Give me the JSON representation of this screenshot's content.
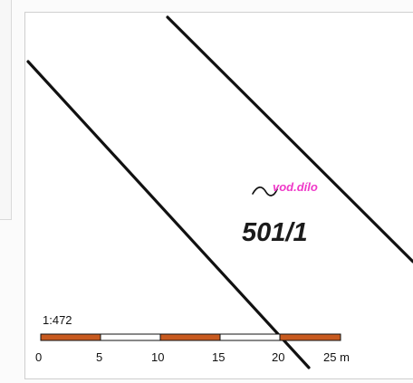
{
  "map": {
    "parcel_number": "501/1",
    "feature_label": "vod.dílo",
    "scale_label": "1:472",
    "scale_ticks": [
      "0",
      "5",
      "10",
      "15",
      "20",
      "25 m"
    ],
    "colors": {
      "parcel_boundary": "#111111",
      "feature_label": "#ef39c8",
      "scale_orange": "#c85a1f",
      "scale_white": "#ffffff",
      "parcel_number": "#1b1b1b"
    }
  }
}
